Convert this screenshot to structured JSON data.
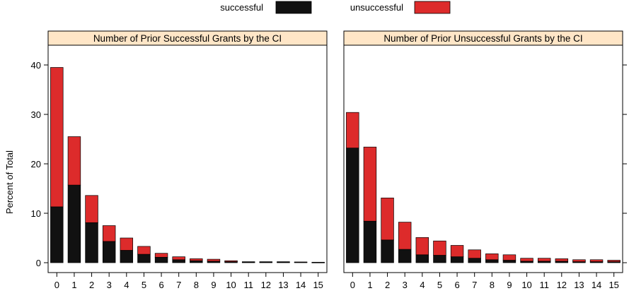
{
  "chart_data": {
    "type": "bar",
    "stacked": true,
    "ylabel": "Percent of Total",
    "ylim": [
      -2,
      44
    ],
    "yticks": [
      0,
      10,
      20,
      30,
      40
    ],
    "categories": [
      "0",
      "1",
      "2",
      "3",
      "4",
      "5",
      "6",
      "7",
      "8",
      "9",
      "10",
      "11",
      "12",
      "13",
      "14",
      "15"
    ],
    "legend": {
      "position": "top",
      "entries": [
        {
          "name": "successful",
          "color": "#111111"
        },
        {
          "name": "unsuccessful",
          "color": "#dd2b2b"
        }
      ]
    },
    "panels": [
      {
        "title": "Number of Prior Successful Grants by the CI",
        "series": [
          {
            "name": "successful",
            "values": [
              11.3,
              15.7,
              8.1,
              4.3,
              2.5,
              1.7,
              1.1,
              0.6,
              0.4,
              0.3,
              0.2,
              0.1,
              0.1,
              0.1,
              0.1,
              0.05
            ]
          },
          {
            "name": "unsuccessful",
            "values": [
              28.2,
              9.8,
              5.5,
              3.2,
              2.5,
              1.6,
              0.8,
              0.6,
              0.4,
              0.4,
              0.2,
              0.1,
              0.1,
              0.1,
              0.05,
              0.05
            ]
          }
        ]
      },
      {
        "title": "Number of Prior Unsuccessful Grants by the CI",
        "series": [
          {
            "name": "successful",
            "values": [
              23.2,
              8.4,
              4.6,
              2.7,
              1.6,
              1.5,
              1.2,
              0.9,
              0.6,
              0.5,
              0.3,
              0.3,
              0.3,
              0.2,
              0.2,
              0.2
            ]
          },
          {
            "name": "unsuccessful",
            "values": [
              7.2,
              15.0,
              8.5,
              5.5,
              3.5,
              2.9,
              2.3,
              1.7,
              1.2,
              1.1,
              0.6,
              0.6,
              0.5,
              0.4,
              0.4,
              0.3
            ]
          }
        ]
      }
    ]
  }
}
